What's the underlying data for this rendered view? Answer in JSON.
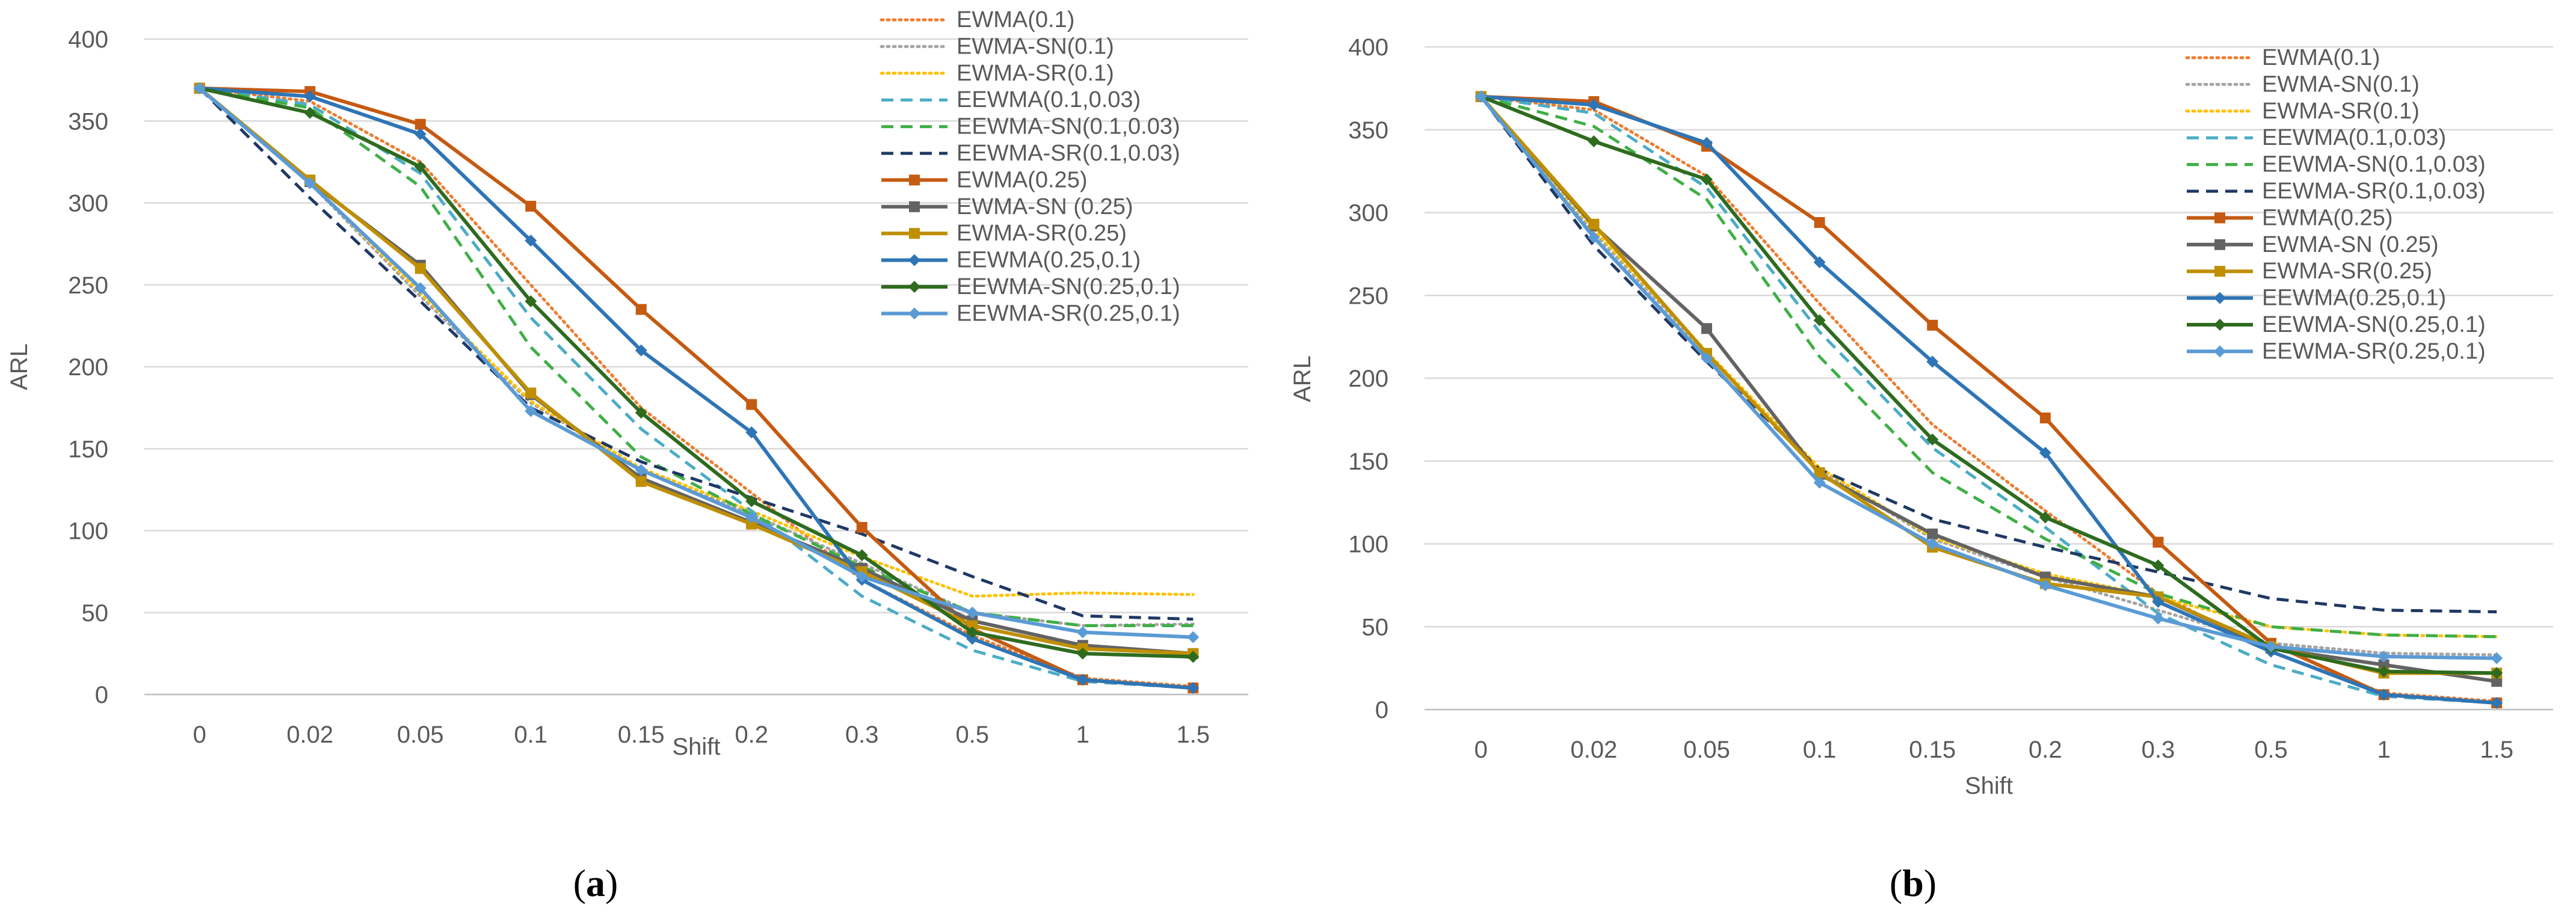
{
  "colors": {
    "EWMA(0.1)": "#ED7D31",
    "EWMA-SN(0.1)": "#A5A5A5",
    "EWMA-SR(0.1)": "#FFC000",
    "EEWMA(0.1,0.03)": "#4BACC6",
    "EEWMA-SN(0.1,0.03)": "#3FAF46",
    "EEWMA-SR(0.1,0.03)": "#1F3864",
    "EWMA(0.25)": "#C55A11",
    "EWMA-SN (0.25)": "#636363",
    "EWMA-SR(0.25)": "#BF8F00",
    "EEWMA(0.25,0.1)": "#2E75B6",
    "EEWMA-SN(0.25,0.1)": "#2E6B1F",
    "EEWMA-SR(0.25,0.1)": "#5B9BD5",
    "grid": "#D9D9D9",
    "tick_text": "#595959"
  },
  "chart_data": [
    {
      "panel": "a",
      "type": "line",
      "caption": "(a)",
      "xlabel": "Shift",
      "ylabel": "ARL",
      "ylim": [
        0,
        400
      ],
      "yticks": [
        0,
        50,
        100,
        150,
        200,
        250,
        300,
        350,
        400
      ],
      "categories": [
        "0",
        "0.02",
        "0.05",
        "0.1",
        "0.15",
        "0.2",
        "0.3",
        "0.5",
        "1",
        "1.5"
      ],
      "series": [
        {
          "name": "EWMA(0.1)",
          "style": "dotted",
          "marker": "none",
          "values": [
            370,
            362,
            325,
            250,
            175,
            123,
            70,
            36,
            10,
            5
          ]
        },
        {
          "name": "EWMA-SN(0.1)",
          "style": "dotted",
          "marker": "none",
          "values": [
            370,
            312,
            243,
            178,
            137,
            110,
            80,
            50,
            42,
            43
          ]
        },
        {
          "name": "EWMA-SR(0.1)",
          "style": "dotted",
          "marker": "none",
          "values": [
            370,
            313,
            245,
            179,
            138,
            112,
            84,
            60,
            62,
            61
          ]
        },
        {
          "name": "EEWMA(0.1,0.03)",
          "style": "dashed",
          "marker": "none",
          "values": [
            370,
            360,
            318,
            230,
            162,
            112,
            60,
            27,
            8,
            4
          ]
        },
        {
          "name": "EEWMA-SN(0.1,0.03)",
          "style": "dashed",
          "marker": "none",
          "values": [
            370,
            358,
            310,
            212,
            145,
            110,
            78,
            50,
            42,
            42
          ]
        },
        {
          "name": "EEWMA-SR(0.1,0.03)",
          "style": "dashed",
          "marker": "none",
          "values": [
            370,
            303,
            240,
            175,
            142,
            120,
            98,
            72,
            48,
            46
          ]
        },
        {
          "name": "EWMA(0.25)",
          "style": "solid",
          "marker": "square",
          "values": [
            370,
            368,
            348,
            298,
            235,
            177,
            102,
            40,
            9,
            4
          ]
        },
        {
          "name": "EWMA-SN (0.25)",
          "style": "solid",
          "marker": "square",
          "values": [
            370,
            313,
            262,
            183,
            132,
            105,
            77,
            45,
            30,
            25
          ]
        },
        {
          "name": "EWMA-SR(0.25)",
          "style": "solid",
          "marker": "square",
          "values": [
            370,
            314,
            260,
            184,
            130,
            104,
            75,
            42,
            28,
            25
          ]
        },
        {
          "name": "EEWMA(0.25,0.1)",
          "style": "solid",
          "marker": "diamond",
          "values": [
            370,
            365,
            342,
            277,
            210,
            160,
            70,
            34,
            9,
            4
          ]
        },
        {
          "name": "EEWMA-SN(0.25,0.1)",
          "style": "solid",
          "marker": "diamond",
          "values": [
            370,
            355,
            322,
            240,
            172,
            118,
            85,
            38,
            25,
            23
          ]
        },
        {
          "name": "EEWMA-SR(0.25,0.1)",
          "style": "solid",
          "marker": "diamond",
          "values": [
            370,
            312,
            248,
            173,
            137,
            108,
            72,
            50,
            38,
            35
          ]
        }
      ]
    },
    {
      "panel": "b",
      "type": "line",
      "caption": "(b)",
      "xlabel": "Shift",
      "ylabel": "ARL",
      "ylim": [
        0,
        400
      ],
      "yticks": [
        0,
        50,
        100,
        150,
        200,
        250,
        300,
        350,
        400
      ],
      "categories": [
        "0",
        "0.02",
        "0.05",
        "0.1",
        "0.15",
        "0.2",
        "0.3",
        "0.5",
        "1",
        "1.5"
      ],
      "series": [
        {
          "name": "EWMA(0.1)",
          "style": "dotted",
          "marker": "none",
          "values": [
            370,
            362,
            322,
            245,
            172,
            120,
            70,
            35,
            10,
            5
          ]
        },
        {
          "name": "EWMA-SN(0.1)",
          "style": "dotted",
          "marker": "none",
          "values": [
            370,
            288,
            215,
            145,
            103,
            80,
            60,
            40,
            34,
            33
          ]
        },
        {
          "name": "EWMA-SR(0.1)",
          "style": "dotted",
          "marker": "none",
          "values": [
            370,
            290,
            216,
            146,
            104,
            82,
            68,
            50,
            45,
            44
          ]
        },
        {
          "name": "EEWMA(0.1,0.03)",
          "style": "dashed",
          "marker": "none",
          "values": [
            370,
            360,
            315,
            228,
            158,
            110,
            58,
            27,
            8,
            4
          ]
        },
        {
          "name": "EEWMA-SN(0.1,0.03)",
          "style": "dashed",
          "marker": "none",
          "values": [
            370,
            352,
            308,
            213,
            143,
            103,
            70,
            50,
            45,
            44
          ]
        },
        {
          "name": "EEWMA-SR(0.1,0.03)",
          "style": "dashed",
          "marker": "none",
          "values": [
            370,
            280,
            210,
            145,
            115,
            98,
            83,
            67,
            60,
            59
          ]
        },
        {
          "name": "EWMA(0.25)",
          "style": "solid",
          "marker": "square",
          "values": [
            370,
            367,
            340,
            294,
            232,
            176,
            101,
            40,
            9,
            4
          ]
        },
        {
          "name": "EWMA-SN (0.25)",
          "style": "solid",
          "marker": "square",
          "values": [
            370,
            292,
            230,
            142,
            106,
            80,
            68,
            37,
            27,
            17
          ]
        },
        {
          "name": "EWMA-SR(0.25)",
          "style": "solid",
          "marker": "square",
          "values": [
            370,
            293,
            215,
            143,
            98,
            76,
            68,
            38,
            22,
            22
          ]
        },
        {
          "name": "EEWMA(0.25,0.1)",
          "style": "solid",
          "marker": "diamond",
          "values": [
            370,
            365,
            342,
            270,
            210,
            155,
            65,
            35,
            9,
            4
          ]
        },
        {
          "name": "EEWMA-SN(0.25,0.1)",
          "style": "solid",
          "marker": "diamond",
          "values": [
            370,
            343,
            320,
            235,
            163,
            116,
            87,
            37,
            23,
            22
          ]
        },
        {
          "name": "EEWMA-SR(0.25,0.1)",
          "style": "solid",
          "marker": "diamond",
          "values": [
            370,
            285,
            212,
            137,
            100,
            75,
            55,
            38,
            32,
            31
          ]
        }
      ]
    }
  ]
}
